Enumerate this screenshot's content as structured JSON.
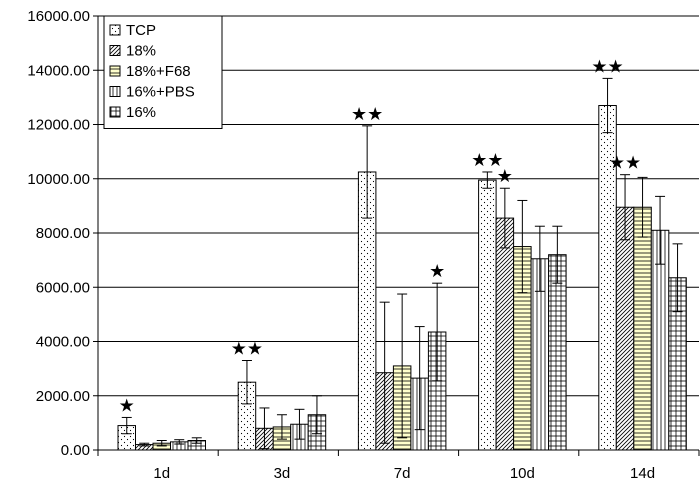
{
  "chart_data": {
    "type": "bar",
    "categories": [
      "1d",
      "3d",
      "7d",
      "10d",
      "14d"
    ],
    "ylim": [
      0,
      16000
    ],
    "ytick_step": 2000,
    "ytick_labels": [
      "0.00",
      "2000.00",
      "4000.00",
      "6000.00",
      "8000.00",
      "10000.00",
      "12000.00",
      "14000.00",
      "16000.00"
    ],
    "grid": true,
    "legend_position": "top-left",
    "title": "",
    "xlabel": "",
    "ylabel": "",
    "series": [
      {
        "name": "TCP",
        "pattern": "dots",
        "fill": "#ffffff",
        "values": [
          900,
          2500,
          10250,
          9950,
          12700
        ],
        "errors": [
          300,
          800,
          1700,
          300,
          1000
        ]
      },
      {
        "name": "18%",
        "pattern": "diagonal",
        "fill": "#ffffff",
        "values": [
          200,
          800,
          2850,
          8550,
          8950
        ],
        "errors": [
          50,
          750,
          2600,
          1100,
          1200
        ]
      },
      {
        "name": "18%+F68",
        "pattern": "horizontal",
        "fill": "#ffffcc",
        "values": [
          250,
          850,
          3100,
          7500,
          8950
        ],
        "errors": [
          100,
          450,
          2650,
          1700,
          1100
        ]
      },
      {
        "name": "16%+PBS",
        "pattern": "vertical",
        "fill": "#ffffff",
        "values": [
          300,
          950,
          2650,
          7050,
          8100
        ],
        "errors": [
          80,
          550,
          1900,
          1200,
          1250
        ]
      },
      {
        "name": "16%",
        "pattern": "grid",
        "fill": "#ffffff",
        "values": [
          350,
          1300,
          4350,
          7200,
          6350
        ],
        "errors": [
          100,
          700,
          1800,
          1050,
          1250
        ]
      }
    ],
    "annotations": [
      {
        "text": "★",
        "category": "1d",
        "series": "TCP"
      },
      {
        "text": "★★",
        "category": "3d",
        "series": "TCP"
      },
      {
        "text": "★★",
        "category": "7d",
        "series": "TCP"
      },
      {
        "text": "★",
        "category": "7d",
        "series": "16%"
      },
      {
        "text": "★★",
        "category": "10d",
        "series": "TCP"
      },
      {
        "text": "★",
        "category": "10d",
        "series": "18%"
      },
      {
        "text": "★★",
        "category": "14d",
        "series": "TCP"
      },
      {
        "text": "★★",
        "category": "14d",
        "series": "18%"
      }
    ]
  }
}
